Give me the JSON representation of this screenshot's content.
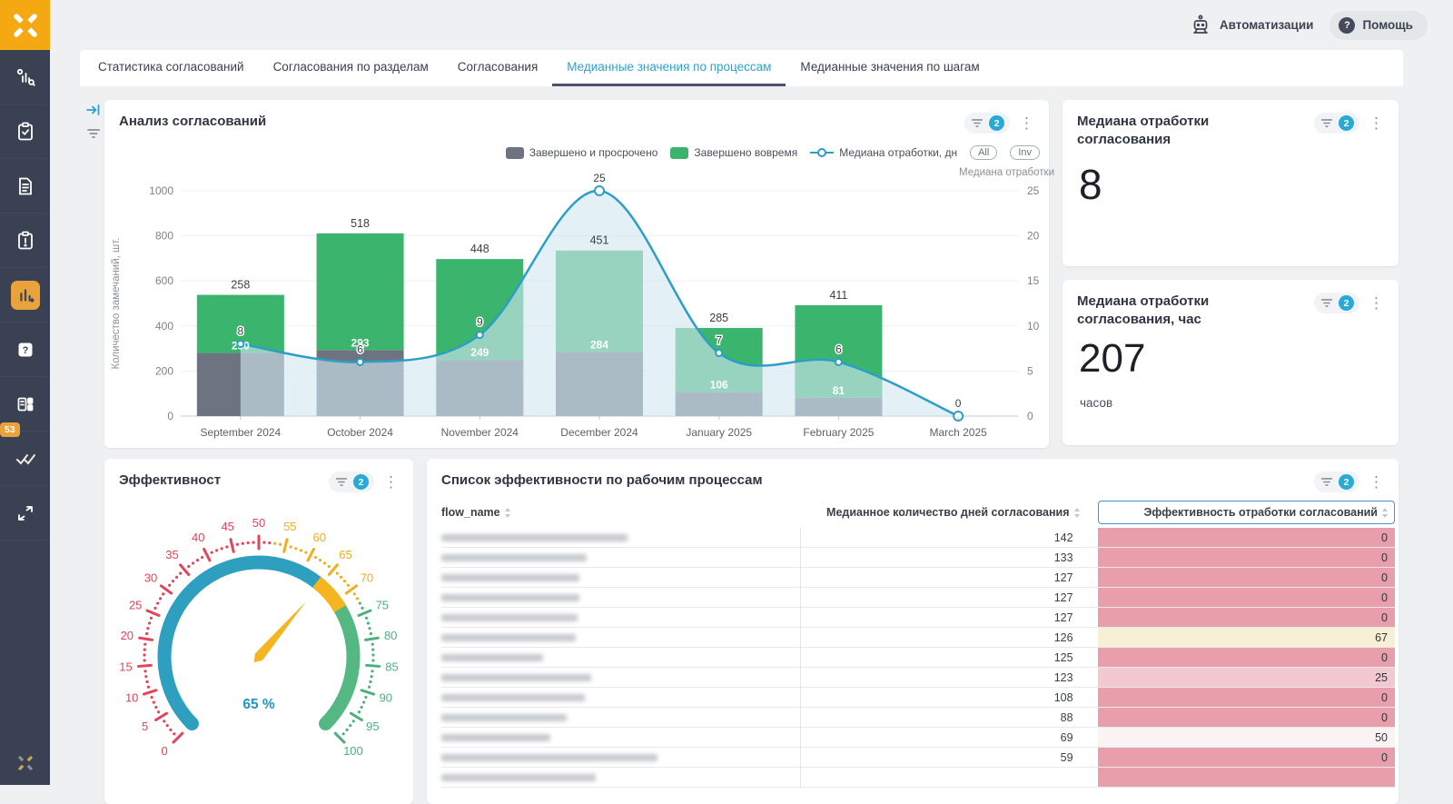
{
  "accent_colors": {
    "brand_orange": "#f4a912",
    "active_blue": "#2ba3cf",
    "badge_blue": "#2ba9d6",
    "sidebar_dark": "#3a4152"
  },
  "sidebar": {
    "icons": [
      "processes-icon",
      "clipboard-check-icon",
      "document-icon",
      "clipboard-alert-icon",
      "analytics-icon",
      "help-square-icon",
      "cards-icon",
      "double-check-icon",
      "expand-icon",
      "brand-small-icon"
    ],
    "active_icon": "analytics-icon",
    "badge": "53"
  },
  "header": {
    "automations_label": "Автоматизации",
    "help_label": "Помощь",
    "help_q": "?"
  },
  "tabs": [
    {
      "label": "Статистика согласований"
    },
    {
      "label": "Согласования по разделам"
    },
    {
      "label": "Согласования"
    },
    {
      "label": "Медианные значения по процессам",
      "active": true
    },
    {
      "label": "Медианные значения по шагам"
    }
  ],
  "cards": {
    "analysis": {
      "title": "Анализ согласований",
      "filter_count": "2"
    },
    "median": {
      "title": "Медиана отработки согласования",
      "filter_count": "2",
      "value": "8"
    },
    "median_hours": {
      "title": "Медиана отработки согласования, час",
      "filter_count": "2",
      "value": "207",
      "unit": "часов"
    },
    "gauge": {
      "title": "Эффективност",
      "filter_count": "2"
    },
    "table": {
      "title": "Список эффективности по рабочим процессам",
      "filter_count": "2",
      "columns": [
        "flow_name",
        "Медианное количество дней согласования",
        "Эффективность отработки согласований"
      ],
      "rows": [
        {
          "name_blurred": true,
          "name_w": 205,
          "days": "142",
          "eff": "0",
          "eff_color": "#e89fab"
        },
        {
          "name_blurred": true,
          "name_w": 160,
          "days": "133",
          "eff": "0",
          "eff_color": "#e89fab"
        },
        {
          "name_blurred": true,
          "name_w": 152,
          "days": "127",
          "eff": "0",
          "eff_color": "#e89fab"
        },
        {
          "name_blurred": true,
          "name_w": 152,
          "days": "127",
          "eff": "0",
          "eff_color": "#e89fab"
        },
        {
          "name_blurred": true,
          "name_w": 150,
          "days": "127",
          "eff": "0",
          "eff_color": "#e89fab"
        },
        {
          "name_blurred": true,
          "name_w": 148,
          "days": "126",
          "eff": "67",
          "eff_color": "#f7f0d5"
        },
        {
          "name_blurred": true,
          "name_w": 112,
          "days": "125",
          "eff": "0",
          "eff_color": "#e89fab"
        },
        {
          "name_blurred": true,
          "name_w": 165,
          "days": "123",
          "eff": "25",
          "eff_color": "#f2c9d1"
        },
        {
          "name_blurred": true,
          "name_w": 158,
          "days": "108",
          "eff": "0",
          "eff_color": "#e89fab"
        },
        {
          "name_blurred": true,
          "name_w": 138,
          "days": "88",
          "eff": "0",
          "eff_color": "#e89fab"
        },
        {
          "name_blurred": true,
          "name_w": 120,
          "days": "69",
          "eff": "50",
          "eff_color": "#fbf3f3"
        },
        {
          "name_blurred": true,
          "name_w": 238,
          "days": "59",
          "eff": "0",
          "eff_color": "#e89fab"
        },
        {
          "name_blurred": true,
          "name_w": 170,
          "days": "",
          "eff": "",
          "eff_color": "#e89fab"
        }
      ]
    }
  },
  "chart_data": [
    {
      "type": "bar",
      "subtype": "stacked-bar-with-line",
      "title": "Анализ согласований",
      "categories": [
        "September 2024",
        "October 2024",
        "November 2024",
        "December 2024",
        "January 2025",
        "February 2025",
        "March 2025"
      ],
      "series": [
        {
          "name": "Завершено и просрочено",
          "type": "bar",
          "color": "#6d7380",
          "values": [
            280,
            293,
            249,
            284,
            106,
            81,
            0
          ]
        },
        {
          "name": "Завершено вовремя",
          "type": "bar",
          "color": "#3bb46e",
          "values": [
            258,
            518,
            448,
            451,
            285,
            411,
            0
          ]
        },
        {
          "name": "Медиана отработки, дн",
          "type": "line",
          "color": "#2d9fc7",
          "area_color": "#d2e7f1",
          "axis": "right",
          "values": [
            8,
            6,
            9,
            25,
            7,
            6,
            0
          ]
        }
      ],
      "xlabel": "",
      "ylabel_left": "Количество замечаний, шт.",
      "ylabel_right": "Медиана отработки",
      "ylim_left": [
        0,
        1000
      ],
      "yticks_left": [
        0,
        200,
        400,
        600,
        800,
        1000
      ],
      "ylim_right": [
        0,
        25
      ],
      "yticks_right": [
        0,
        5,
        10,
        15,
        20,
        25
      ],
      "grid": true,
      "legend_position": "top-right",
      "toggles": [
        "All",
        "Inv"
      ]
    },
    {
      "type": "gauge",
      "title": "Эффективност",
      "value": 65,
      "display": "65 %",
      "min": 0,
      "max": 100,
      "tick_step": 5,
      "segments": [
        {
          "from": 0,
          "to": 65,
          "color": "#2f9fc0"
        },
        {
          "from": 64,
          "to": 72,
          "color": "#f5b51e"
        },
        {
          "from": 71,
          "to": 100,
          "color": "#55b883"
        }
      ],
      "tick_color_zones": [
        {
          "upto": 52,
          "color": "#e2445a"
        },
        {
          "upto": 72,
          "color": "#f0ad1d"
        },
        {
          "upto": 100,
          "color": "#4db07e"
        }
      ],
      "needle_color": "#f5b51e",
      "value_color": "#2196c9"
    }
  ]
}
